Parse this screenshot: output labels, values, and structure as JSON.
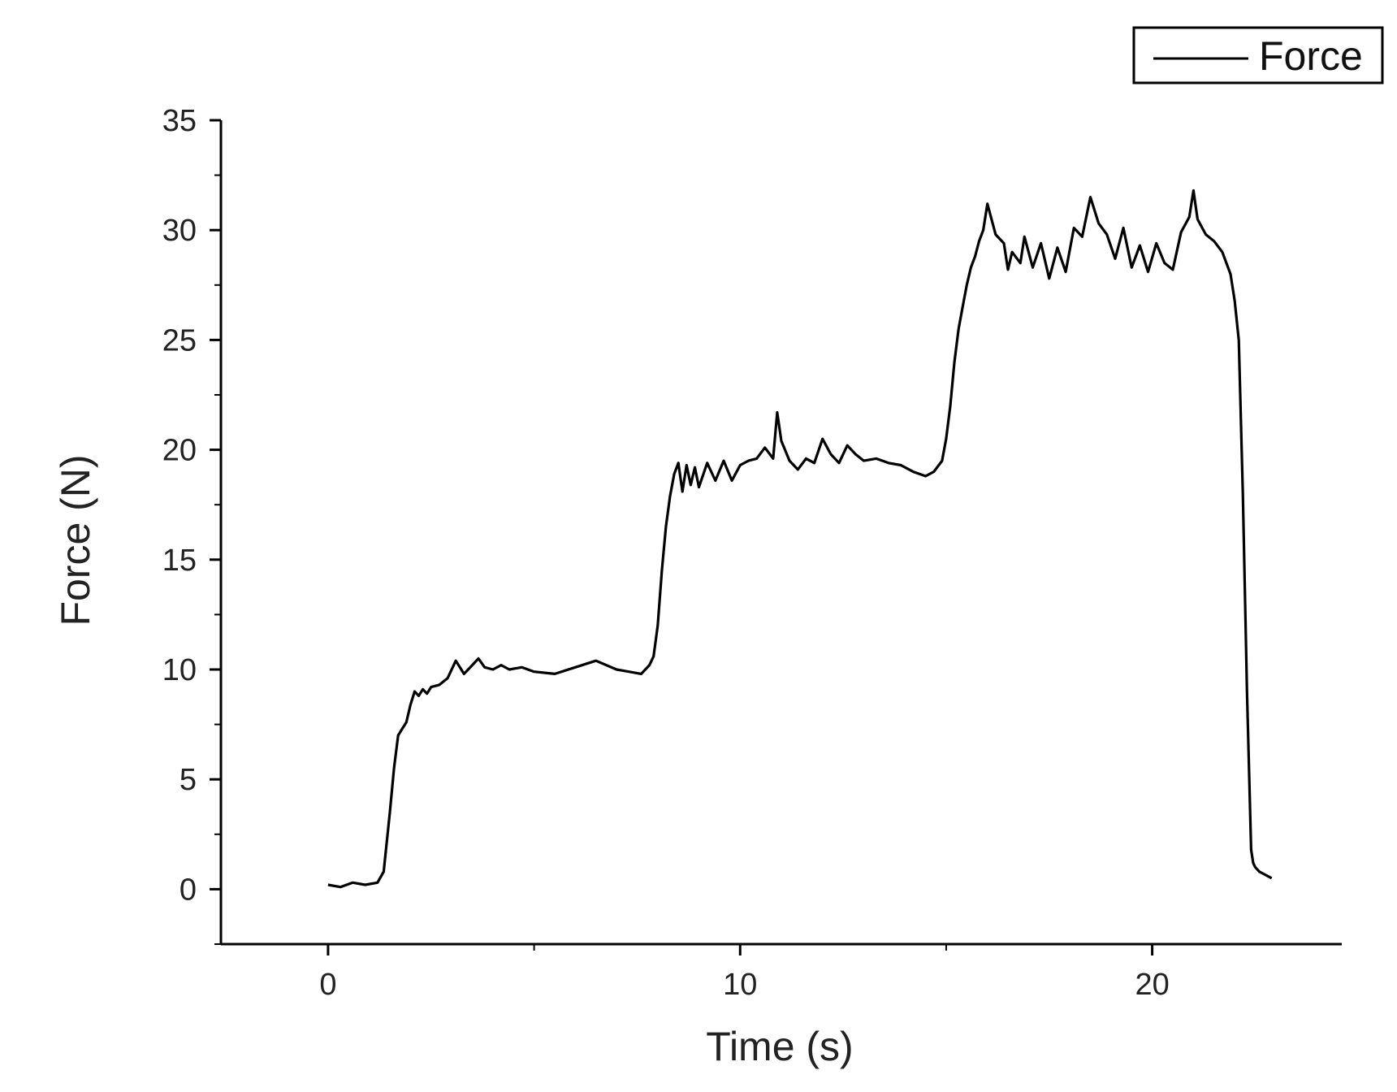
{
  "chart_data": {
    "type": "line",
    "title": "",
    "xlabel": "Time (s)",
    "ylabel": "Force (N)",
    "xlim": [
      -2.6,
      24.6
    ],
    "ylim": [
      -2.5,
      35
    ],
    "x_ticks": [
      0,
      10,
      20
    ],
    "x_tick_labels": [
      "0",
      "10",
      "20"
    ],
    "y_ticks": [
      0,
      5,
      10,
      15,
      20,
      25,
      30,
      35
    ],
    "y_tick_labels": [
      "0",
      "5",
      "10",
      "15",
      "20",
      "25",
      "30",
      "35"
    ],
    "grid": false,
    "legend": {
      "placement": "top-right",
      "entries": [
        "Force"
      ]
    },
    "colors": {
      "line": "#000000",
      "axis": "#000000"
    },
    "series": [
      {
        "name": "Force",
        "x": [
          0,
          0.3,
          0.6,
          0.9,
          1.2,
          1.35,
          1.5,
          1.6,
          1.7,
          1.8,
          1.9,
          2.0,
          2.1,
          2.2,
          2.3,
          2.4,
          2.5,
          2.7,
          2.9,
          3.1,
          3.3,
          3.5,
          3.65,
          3.8,
          4.0,
          4.2,
          4.4,
          4.7,
          5.0,
          5.5,
          6.0,
          6.5,
          7.0,
          7.3,
          7.6,
          7.8,
          7.9,
          8.0,
          8.1,
          8.2,
          8.3,
          8.4,
          8.5,
          8.6,
          8.7,
          8.8,
          8.9,
          9.0,
          9.2,
          9.4,
          9.6,
          9.8,
          10.0,
          10.2,
          10.4,
          10.6,
          10.8,
          10.9,
          11.0,
          11.2,
          11.4,
          11.6,
          11.8,
          12.0,
          12.2,
          12.4,
          12.6,
          12.8,
          13.0,
          13.3,
          13.6,
          13.9,
          14.2,
          14.5,
          14.7,
          14.9,
          15.0,
          15.1,
          15.2,
          15.3,
          15.4,
          15.5,
          15.6,
          15.7,
          15.8,
          15.9,
          16.0,
          16.2,
          16.4,
          16.5,
          16.6,
          16.8,
          16.9,
          17.1,
          17.3,
          17.5,
          17.7,
          17.9,
          18.1,
          18.3,
          18.5,
          18.7,
          18.9,
          19.1,
          19.3,
          19.5,
          19.7,
          19.9,
          20.1,
          20.3,
          20.5,
          20.7,
          20.9,
          21.0,
          21.1,
          21.3,
          21.5,
          21.7,
          21.9,
          22.0,
          22.1,
          22.2,
          22.3,
          22.4,
          22.45,
          22.5,
          22.55,
          22.6,
          22.7,
          22.8,
          22.9
        ],
        "y": [
          0.2,
          0.1,
          0.3,
          0.2,
          0.3,
          0.8,
          3.5,
          5.5,
          7.0,
          7.3,
          7.6,
          8.4,
          9.0,
          8.8,
          9.1,
          8.9,
          9.2,
          9.3,
          9.6,
          10.4,
          9.8,
          10.2,
          10.5,
          10.1,
          10.0,
          10.2,
          10.0,
          10.1,
          9.9,
          9.8,
          10.1,
          10.4,
          10.0,
          9.9,
          9.8,
          10.2,
          10.6,
          12.0,
          14.5,
          16.5,
          17.9,
          18.9,
          19.4,
          18.1,
          19.3,
          18.4,
          19.2,
          18.3,
          19.4,
          18.6,
          19.5,
          18.6,
          19.3,
          19.5,
          19.6,
          20.1,
          19.6,
          21.7,
          20.4,
          19.5,
          19.1,
          19.6,
          19.4,
          20.5,
          19.8,
          19.4,
          20.2,
          19.8,
          19.5,
          19.6,
          19.4,
          19.3,
          19.0,
          18.8,
          19.0,
          19.5,
          20.5,
          22.0,
          24.0,
          25.5,
          26.5,
          27.5,
          28.3,
          28.8,
          29.5,
          30.0,
          31.2,
          29.8,
          29.4,
          28.2,
          29.0,
          28.5,
          29.7,
          28.3,
          29.4,
          27.8,
          29.2,
          28.1,
          30.1,
          29.7,
          31.5,
          30.3,
          29.8,
          28.7,
          30.1,
          28.3,
          29.3,
          28.1,
          29.4,
          28.5,
          28.2,
          29.9,
          30.6,
          31.8,
          30.5,
          29.8,
          29.5,
          29.0,
          28.0,
          26.8,
          25.0,
          18.0,
          9.0,
          1.8,
          1.2,
          1.0,
          0.9,
          0.8,
          0.7,
          0.6,
          0.5
        ]
      }
    ]
  }
}
